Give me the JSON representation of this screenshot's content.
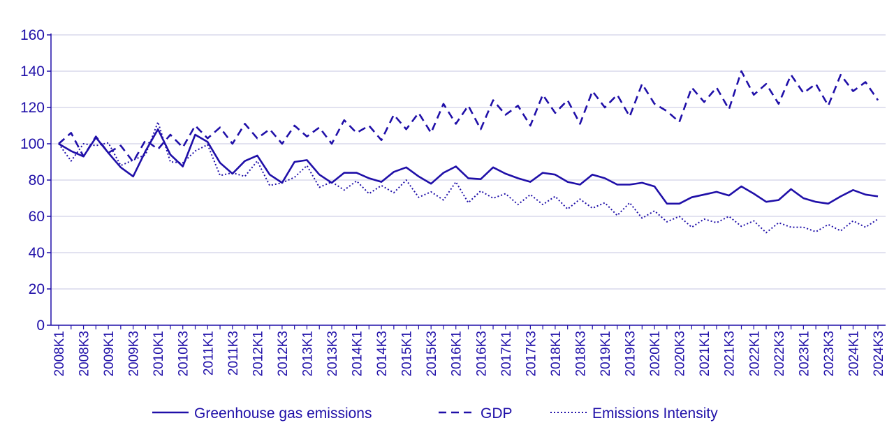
{
  "colors": {
    "series": "#1f0fa8",
    "grid": "#c6c4e0"
  },
  "chart_data": {
    "type": "line",
    "title": "",
    "xlabel": "",
    "ylabel": "",
    "ylim": [
      0,
      160
    ],
    "yticks": [
      0,
      20,
      40,
      60,
      80,
      100,
      120,
      140,
      160
    ],
    "grid": true,
    "legend_position": "bottom",
    "x": [
      "2008K1",
      "2008K2",
      "2008K3",
      "2008K4",
      "2009K1",
      "2009K2",
      "2009K3",
      "2009K4",
      "2010K1",
      "2010K2",
      "2010K3",
      "2010K4",
      "2011K1",
      "2011K2",
      "2011K3",
      "2011K4",
      "2012K1",
      "2012K2",
      "2012K3",
      "2012K4",
      "2013K1",
      "2013K2",
      "2013K3",
      "2013K4",
      "2014K1",
      "2014K2",
      "2014K3",
      "2014K4",
      "2015K1",
      "2015K2",
      "2015K3",
      "2015K4",
      "2016K1",
      "2016K2",
      "2016K3",
      "2016K4",
      "2017K1",
      "2017K2",
      "2017K3",
      "2017K4",
      "2018K1",
      "2018K2",
      "2018K3",
      "2018K4",
      "2019K1",
      "2019K2",
      "2019K3",
      "2019K4",
      "2020K1",
      "2020K2",
      "2020K3",
      "2020K4",
      "2021K1",
      "2021K2",
      "2021K3",
      "2021K4",
      "2022K1",
      "2022K2",
      "2022K3",
      "2022K4",
      "2023K1",
      "2023K2",
      "2023K3",
      "2023K4",
      "2024K1",
      "2024K2",
      "2024K3"
    ],
    "xtick_labels": [
      "2008K1",
      "2008K3",
      "2009K1",
      "2009K3",
      "2010K1",
      "2010K3",
      "2011K1",
      "2011K3",
      "2012K1",
      "2012K3",
      "2013K1",
      "2013K3",
      "2014K1",
      "2014K3",
      "2015K1",
      "2015K3",
      "2016K1",
      "2016K3",
      "2017K1",
      "2017K3",
      "2018K1",
      "2018K3",
      "2019K1",
      "2019K3",
      "2020K1",
      "2020K3",
      "2021K1",
      "2021K3",
      "2022K1",
      "2022K3",
      "2023K1",
      "2023K3",
      "2024K1",
      "2024K3"
    ],
    "series": [
      {
        "name": "Greenhouse gas emissions",
        "dash": "solid",
        "values": [
          100,
          96,
          93,
          103.5,
          95,
          87,
          82,
          96,
          108,
          94,
          87.5,
          105,
          101,
          89.5,
          83.5,
          90.5,
          93.5,
          83,
          78.5,
          90,
          91,
          83,
          78.5,
          84,
          84,
          81,
          79,
          84.5,
          87,
          82,
          78,
          84,
          87.5,
          81,
          80.5,
          87,
          83.5,
          81,
          79,
          84,
          83,
          79,
          77.5,
          83,
          81,
          77.5,
          77.5,
          78.5,
          76.5,
          67,
          67,
          70.5,
          72,
          73.5,
          71.5,
          76.5,
          72.5,
          68,
          69,
          75,
          70,
          68,
          67,
          71,
          74.5,
          72,
          71
        ]
      },
      {
        "name": "GDP",
        "dash": "dashed",
        "values": [
          100,
          106,
          93,
          104,
          95,
          99,
          90,
          102,
          97,
          105,
          98,
          110,
          103,
          109,
          100,
          111,
          103,
          108,
          100,
          110,
          104,
          109,
          100,
          113,
          106,
          110,
          102,
          116,
          108,
          117,
          106,
          122,
          111,
          121,
          108,
          124,
          116,
          121,
          110,
          127,
          117,
          124,
          111,
          129,
          120,
          127,
          115,
          133,
          122,
          118,
          112,
          131,
          123,
          131,
          119,
          140,
          127,
          133,
          122,
          138,
          128,
          133,
          121,
          138,
          129,
          134,
          124
        ]
      },
      {
        "name": "Emissions Intensity",
        "dash": "dotted",
        "values": [
          100,
          90.5,
          100,
          99,
          100.5,
          88,
          91,
          94,
          112,
          90,
          89.5,
          96,
          99.5,
          82.5,
          84,
          82,
          90.5,
          77,
          78.5,
          81.5,
          88,
          76,
          79,
          74.5,
          79.5,
          72.5,
          77,
          73,
          80,
          70.5,
          73.5,
          69,
          79,
          67.5,
          74,
          70,
          72.5,
          66.5,
          72,
          66.5,
          71,
          64,
          69.5,
          64.5,
          67.5,
          60.5,
          67.5,
          59,
          63,
          57,
          60,
          54,
          58.5,
          56.5,
          60,
          54.5,
          57.5,
          51,
          56.5,
          54,
          54,
          51.5,
          55.5,
          52,
          57.5,
          54,
          58.5
        ]
      }
    ]
  }
}
